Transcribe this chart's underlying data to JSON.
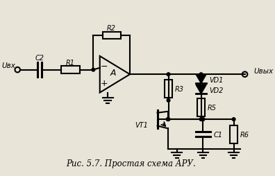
{
  "title": "Рис. 5.7. Простая схема АРУ.",
  "bg_color": "#e8e4d8",
  "line_color": "#000000",
  "text_color": "#000000",
  "labels": {
    "U_vx": "Uвх",
    "U_vyx": "Uвых",
    "C2": "C2",
    "R1": "R1",
    "R2": "R2",
    "R3": "R3",
    "R5": "R5",
    "R6": "R6",
    "C1": "C1",
    "VD1": "VD1",
    "VD2": "VD2",
    "VT1": "VT1",
    "A": "A"
  },
  "figsize": [
    3.96,
    2.55
  ],
  "dpi": 100
}
